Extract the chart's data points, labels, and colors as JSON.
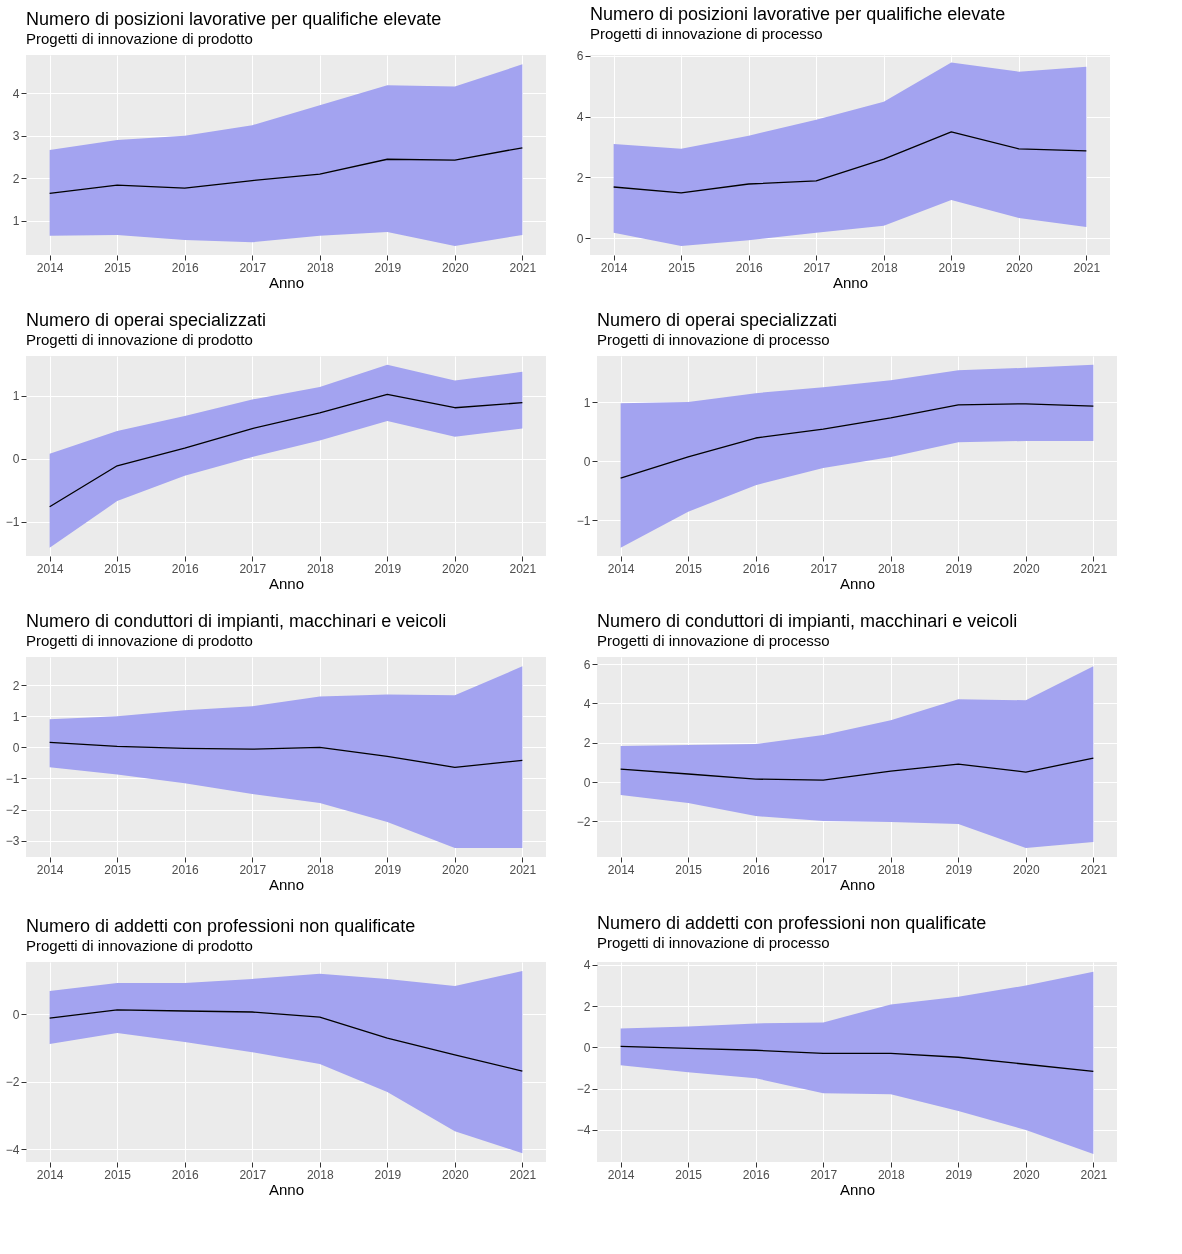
{
  "chart_data": [
    {
      "type": "line",
      "title": "Numero  di posizioni lavorative per qualifiche elevate",
      "subtitle": "Progetti di innovazione di prodotto",
      "xlabel": "Anno",
      "x": [
        2014,
        2015,
        2016,
        2017,
        2018,
        2019,
        2020,
        2021
      ],
      "xlim": [
        2013.65,
        2021.35
      ],
      "xticks": [
        2014,
        2015,
        2016,
        2017,
        2018,
        2019,
        2020,
        2021
      ],
      "ylim": [
        0.2,
        4.9
      ],
      "yticks": [
        1,
        2,
        3,
        4
      ],
      "grid": true,
      "series": [
        {
          "color": "#000000",
          "values": [
            1.65,
            1.84,
            1.77,
            1.95,
            2.1,
            2.45,
            2.43,
            2.72
          ],
          "lower": [
            0.65,
            0.67,
            0.55,
            0.5,
            0.65,
            0.74,
            0.41,
            0.67
          ],
          "upper": [
            2.67,
            2.9,
            3.0,
            3.25,
            3.72,
            4.19,
            4.16,
            4.68
          ]
        }
      ]
    },
    {
      "type": "line",
      "title": "Numero  di posizioni lavorative per qualifiche elevate",
      "subtitle": "Progetti di innovazione di processo",
      "xlabel": "Anno",
      "x": [
        2014,
        2015,
        2016,
        2017,
        2018,
        2019,
        2020,
        2021
      ],
      "xlim": [
        2013.65,
        2021.35
      ],
      "xticks": [
        2014,
        2015,
        2016,
        2017,
        2018,
        2019,
        2020,
        2021
      ],
      "ylim": [
        -0.56,
        6.03
      ],
      "yticks": [
        0,
        2,
        4,
        6
      ],
      "grid": true,
      "series": [
        {
          "color": "#000000",
          "values": [
            1.68,
            1.49,
            1.78,
            1.88,
            2.6,
            3.5,
            2.94,
            2.87
          ],
          "lower": [
            0.17,
            -0.26,
            -0.07,
            0.17,
            0.4,
            1.25,
            0.66,
            0.36
          ],
          "upper": [
            3.1,
            2.94,
            3.37,
            3.9,
            4.49,
            5.78,
            5.48,
            5.64
          ]
        }
      ]
    },
    {
      "type": "line",
      "title": "Numero di operai specializzati",
      "subtitle": "Progetti di innovazione di prodotto",
      "xlabel": "Anno",
      "x": [
        2014,
        2015,
        2016,
        2017,
        2018,
        2019,
        2020,
        2021
      ],
      "xlim": [
        2013.65,
        2021.35
      ],
      "xticks": [
        2014,
        2015,
        2016,
        2017,
        2018,
        2019,
        2020,
        2021
      ],
      "ylim": [
        -1.54,
        1.63
      ],
      "yticks": [
        -1,
        0,
        1
      ],
      "grid": true,
      "series": [
        {
          "color": "#000000",
          "values": [
            -0.76,
            -0.11,
            0.17,
            0.48,
            0.73,
            1.02,
            0.81,
            0.89
          ],
          "lower": [
            -1.41,
            -0.67,
            -0.27,
            0.03,
            0.29,
            0.6,
            0.35,
            0.48
          ],
          "upper": [
            0.08,
            0.44,
            0.68,
            0.94,
            1.14,
            1.49,
            1.24,
            1.38
          ]
        }
      ]
    },
    {
      "type": "line",
      "title": "Numero di operai specializzati",
      "subtitle": "Progetti di innovazione di processo",
      "xlabel": "Anno",
      "x": [
        2014,
        2015,
        2016,
        2017,
        2018,
        2019,
        2020,
        2021
      ],
      "xlim": [
        2013.65,
        2021.35
      ],
      "xticks": [
        2014,
        2015,
        2016,
        2017,
        2018,
        2019,
        2020,
        2021
      ],
      "ylim": [
        -1.61,
        1.78
      ],
      "yticks": [
        -1,
        0,
        1
      ],
      "grid": true,
      "series": [
        {
          "color": "#000000",
          "values": [
            -0.29,
            0.07,
            0.39,
            0.54,
            0.73,
            0.95,
            0.97,
            0.93
          ],
          "lower": [
            -1.47,
            -0.86,
            -0.41,
            -0.12,
            0.07,
            0.32,
            0.34,
            0.34
          ],
          "upper": [
            0.98,
            1.0,
            1.15,
            1.25,
            1.37,
            1.54,
            1.58,
            1.63
          ]
        }
      ]
    },
    {
      "type": "line",
      "title": "Numero di conduttori di impianti, macchinari e veicoli",
      "subtitle": "Progetti di innovazione di prodotto",
      "xlabel": "Anno",
      "x": [
        2014,
        2015,
        2016,
        2017,
        2018,
        2019,
        2020,
        2021
      ],
      "xlim": [
        2013.65,
        2021.35
      ],
      "xticks": [
        2014,
        2015,
        2016,
        2017,
        2018,
        2019,
        2020,
        2021
      ],
      "ylim": [
        -3.52,
        2.9
      ],
      "yticks": [
        -3,
        -2,
        -1,
        0,
        1,
        2
      ],
      "grid": true,
      "series": [
        {
          "color": "#000000",
          "values": [
            0.16,
            0.03,
            -0.03,
            -0.06,
            0,
            -0.29,
            -0.64,
            -0.42
          ],
          "lower": [
            -0.64,
            -0.87,
            -1.15,
            -1.5,
            -1.79,
            -2.4,
            -3.23,
            -3.23
          ],
          "upper": [
            0.9,
            1.0,
            1.19,
            1.32,
            1.63,
            1.7,
            1.67,
            2.6
          ]
        }
      ]
    },
    {
      "type": "line",
      "title": "Numero di conduttori di impianti, macchinari e veicoli",
      "subtitle": "Progetti di innovazione di processo",
      "xlabel": "Anno",
      "x": [
        2014,
        2015,
        2016,
        2017,
        2018,
        2019,
        2020,
        2021
      ],
      "xlim": [
        2013.65,
        2021.35
      ],
      "xticks": [
        2014,
        2015,
        2016,
        2017,
        2018,
        2019,
        2020,
        2021
      ],
      "ylim": [
        -3.81,
        6.36
      ],
      "yticks": [
        -2,
        0,
        2,
        4,
        6
      ],
      "grid": true,
      "series": [
        {
          "color": "#000000",
          "values": [
            0.66,
            0.41,
            0.15,
            0.1,
            0.56,
            0.91,
            0.51,
            1.22
          ],
          "lower": [
            -0.66,
            -1.07,
            -1.73,
            -1.98,
            -2.03,
            -2.13,
            -3.35,
            -3.05
          ],
          "upper": [
            1.83,
            1.88,
            1.93,
            2.39,
            3.15,
            4.21,
            4.16,
            5.89
          ]
        }
      ]
    },
    {
      "type": "line",
      "title": "Numero di addetti con professioni non qualificate",
      "subtitle": "Progetti di innovazione di prodotto",
      "xlabel": "Anno",
      "x": [
        2014,
        2015,
        2016,
        2017,
        2018,
        2019,
        2020,
        2021
      ],
      "xlim": [
        2013.65,
        2021.35
      ],
      "xticks": [
        2014,
        2015,
        2016,
        2017,
        2018,
        2019,
        2020,
        2021
      ],
      "ylim": [
        -4.38,
        1.54
      ],
      "yticks": [
        -4,
        -2,
        0
      ],
      "grid": true,
      "series": [
        {
          "color": "#000000",
          "values": [
            -0.12,
            0.12,
            0.09,
            0.06,
            -0.09,
            -0.71,
            -1.21,
            -1.69
          ],
          "lower": [
            -0.89,
            -0.56,
            -0.83,
            -1.13,
            -1.48,
            -2.31,
            -3.47,
            -4.12
          ],
          "upper": [
            0.68,
            0.92,
            0.92,
            1.04,
            1.19,
            1.04,
            0.83,
            1.27
          ]
        }
      ]
    },
    {
      "type": "line",
      "title": "Numero di addetti con professioni non qualificate",
      "subtitle": "Progetti di innovazione di processo",
      "xlabel": "Anno",
      "x": [
        2014,
        2015,
        2016,
        2017,
        2018,
        2019,
        2020,
        2021
      ],
      "xlim": [
        2013.65,
        2021.35
      ],
      "xticks": [
        2014,
        2015,
        2016,
        2017,
        2018,
        2019,
        2020,
        2021
      ],
      "ylim": [
        -5.56,
        4.14
      ],
      "yticks": [
        -4,
        -2,
        0,
        2,
        4
      ],
      "grid": true,
      "series": [
        {
          "color": "#000000",
          "values": [
            0.05,
            -0.05,
            -0.14,
            -0.29,
            -0.29,
            -0.48,
            -0.82,
            -1.16
          ],
          "lower": [
            -0.87,
            -1.21,
            -1.5,
            -2.22,
            -2.27,
            -3.09,
            -4.01,
            -5.17
          ],
          "upper": [
            0.92,
            1.01,
            1.16,
            1.21,
            2.08,
            2.46,
            3.0,
            3.67
          ]
        }
      ]
    }
  ]
}
